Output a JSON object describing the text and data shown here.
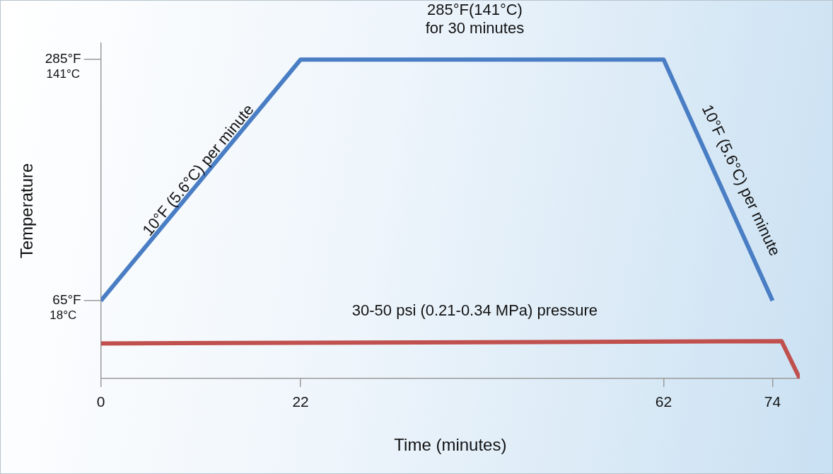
{
  "chart_data": {
    "type": "line",
    "xlabel": "Time (minutes)",
    "ylabel": "Temperature",
    "x": [
      0,
      22,
      62,
      74
    ],
    "xlim": [
      0,
      77
    ],
    "xticks": [
      0,
      22,
      62,
      74
    ],
    "ylim": [
      -6,
      300
    ],
    "yticks": [
      {
        "value": 65,
        "label": "65°F"
      },
      {
        "value": 285,
        "label": "285°F"
      }
    ],
    "y2lim": [
      -14,
      157
    ],
    "y2ticks": [
      {
        "value": 18,
        "label": "18°C"
      },
      {
        "value": 141,
        "label": "141°C"
      }
    ],
    "series": [
      {
        "color": "#4a7ec4",
        "values": [
          65,
          285,
          285,
          65
        ]
      },
      {
        "color": "#c0504d",
        "x": [
          0,
          75,
          77
        ],
        "values": [
          26,
          28,
          -6
        ]
      }
    ],
    "annotations": [
      "285°F(141°C)\nfor 30 minutes",
      "10°F (5.6°C) per minute",
      "10°F (5.6°C) per minute",
      "30-50 psi (0.21-0.34 MPa) pressure"
    ],
    "grid": false,
    "legend": false,
    "marker": "none",
    "line_style": "solid"
  }
}
